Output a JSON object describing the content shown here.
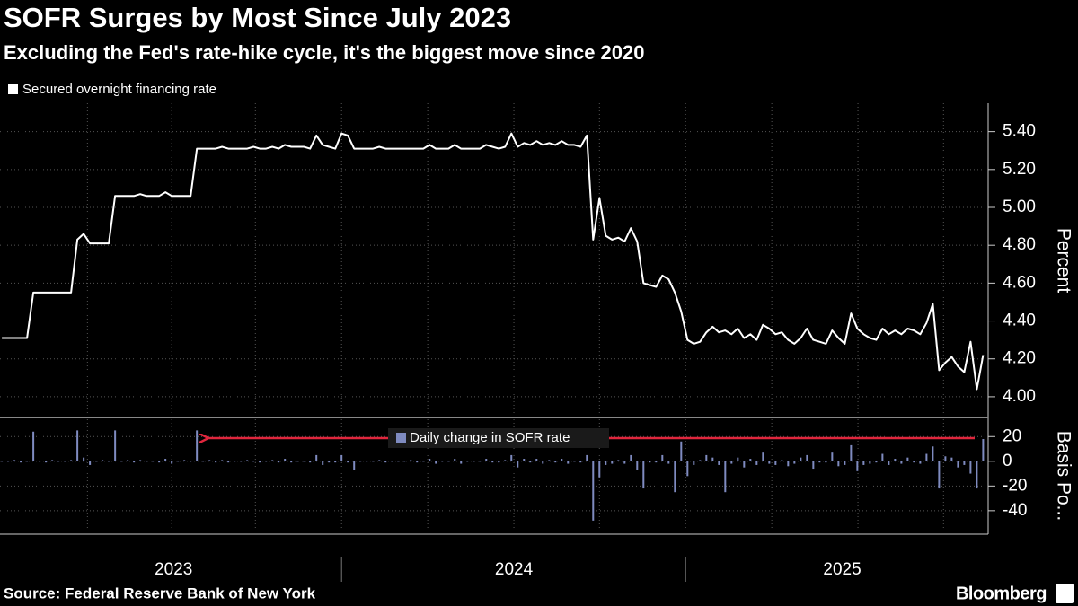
{
  "chart_data": [
    {
      "type": "line",
      "title": "SOFR Surges by Most Since July 2023",
      "subtitle": "Excluding the Fed's rate-hike cycle, it's the biggest move since 2020",
      "ylabel": "Percent",
      "xlim": [
        -0.3,
        156.8
      ],
      "ylim": [
        3.9,
        5.55
      ],
      "yticks": [
        {
          "value": 4.0,
          "label": "4.00"
        },
        {
          "value": 4.2,
          "label": "4.20"
        },
        {
          "value": 4.4,
          "label": "4.40"
        },
        {
          "value": 4.6,
          "label": "4.60"
        },
        {
          "value": 4.8,
          "label": "4.80"
        },
        {
          "value": 5.0,
          "label": "5.00"
        },
        {
          "value": 5.2,
          "label": "5.20"
        },
        {
          "value": 5.4,
          "label": "5.40"
        }
      ],
      "xgrid": [
        13.6,
        27.0,
        40.3,
        54,
        67.7,
        81.4,
        95,
        108.7,
        122.4,
        136.1,
        149.7
      ],
      "grid": true,
      "series": [
        {
          "name": "Secured overnight financing rate",
          "color": "#ffffff",
          "values": [
            4.31,
            4.31,
            4.31,
            4.31,
            4.31,
            4.55,
            4.55,
            4.55,
            4.55,
            4.55,
            4.55,
            4.55,
            4.83,
            4.86,
            4.81,
            4.81,
            4.81,
            4.81,
            5.06,
            5.06,
            5.06,
            5.06,
            5.07,
            5.06,
            5.06,
            5.06,
            5.08,
            5.06,
            5.06,
            5.06,
            5.06,
            5.31,
            5.31,
            5.31,
            5.31,
            5.32,
            5.31,
            5.31,
            5.31,
            5.31,
            5.32,
            5.31,
            5.31,
            5.32,
            5.31,
            5.33,
            5.32,
            5.32,
            5.32,
            5.31,
            5.38,
            5.33,
            5.32,
            5.31,
            5.39,
            5.38,
            5.31,
            5.31,
            5.31,
            5.31,
            5.32,
            5.31,
            5.31,
            5.31,
            5.31,
            5.31,
            5.31,
            5.31,
            5.33,
            5.31,
            5.31,
            5.31,
            5.33,
            5.31,
            5.31,
            5.31,
            5.31,
            5.33,
            5.32,
            5.31,
            5.32,
            5.39,
            5.32,
            5.34,
            5.33,
            5.35,
            5.33,
            5.34,
            5.33,
            5.35,
            5.33,
            5.33,
            5.32,
            5.38,
            4.83,
            5.05,
            4.85,
            4.83,
            4.84,
            4.82,
            4.89,
            4.82,
            4.6,
            4.59,
            4.58,
            4.64,
            4.62,
            4.55,
            4.45,
            4.3,
            4.28,
            4.29,
            4.34,
            4.37,
            4.34,
            4.35,
            4.33,
            4.36,
            4.31,
            4.33,
            4.3,
            4.38,
            4.36,
            4.33,
            4.34,
            4.3,
            4.28,
            4.31,
            4.36,
            4.3,
            4.29,
            4.28,
            4.35,
            4.31,
            4.28,
            4.44,
            4.36,
            4.33,
            4.31,
            4.3,
            4.36,
            4.33,
            4.35,
            4.33,
            4.36,
            4.35,
            4.33,
            4.39,
            4.49,
            4.14,
            4.18,
            4.21,
            4.16,
            4.13,
            4.29,
            4.04,
            4.22
          ]
        }
      ]
    },
    {
      "type": "bar",
      "ylabel": "Basis Po...",
      "xlim": [
        -0.3,
        156.8
      ],
      "ylim": [
        -59,
        34
      ],
      "yticks": [
        20,
        0,
        -20,
        -40
      ],
      "xgrid": [
        13.6,
        27.0,
        40.3,
        54,
        67.7,
        81.4,
        95,
        108.7,
        122.4,
        136.1,
        149.7
      ],
      "grid": true,
      "xticks": [
        {
          "value": 27.3,
          "label": "2023"
        },
        {
          "value": 81.4,
          "label": "2024"
        },
        {
          "value": 133.6,
          "label": "2025"
        }
      ],
      "year_dividers": [
        54,
        108.7
      ],
      "series": [
        {
          "name": "Daily change in SOFR rate",
          "color": "#7f8bc0",
          "values": [
            0,
            0,
            1,
            -1,
            0,
            24,
            0,
            -1,
            1,
            0,
            0,
            1,
            25,
            3,
            -3,
            0,
            1,
            0,
            25,
            0,
            1,
            -1,
            1,
            0,
            0,
            -1,
            2,
            -2,
            0,
            1,
            0,
            25,
            0,
            1,
            -1,
            1,
            -1,
            0,
            0,
            1,
            0,
            -1,
            0,
            1,
            -1,
            2,
            -1,
            0,
            0,
            -1,
            5,
            -3,
            -1,
            -1,
            5,
            -1,
            -7,
            0,
            0,
            0,
            1,
            -1,
            0,
            0,
            0,
            1,
            -1,
            0,
            2,
            -2,
            0,
            0,
            2,
            -2,
            0,
            0,
            0,
            2,
            -1,
            -1,
            1,
            5,
            -5,
            2,
            -1,
            2,
            -2,
            1,
            -1,
            2,
            -2,
            0,
            -1,
            5,
            -48,
            -13,
            -3,
            -2,
            1,
            -2,
            5,
            -7,
            -22,
            -1,
            -1,
            5,
            -2,
            -25,
            16,
            -12,
            -3,
            1,
            5,
            3,
            -3,
            -25,
            -2,
            3,
            -5,
            2,
            -3,
            7,
            -2,
            -3,
            1,
            -4,
            -2,
            3,
            5,
            -6,
            -1,
            -1,
            7,
            -4,
            -3,
            13,
            -8,
            -3,
            -2,
            -1,
            6,
            -3,
            2,
            -2,
            3,
            -1,
            -2,
            6,
            12,
            -22,
            4,
            3,
            -5,
            -3,
            -10,
            -22,
            18
          ]
        }
      ]
    }
  ],
  "source": "Source: Federal Reserve Bank of New York",
  "brand": "Bloomberg"
}
